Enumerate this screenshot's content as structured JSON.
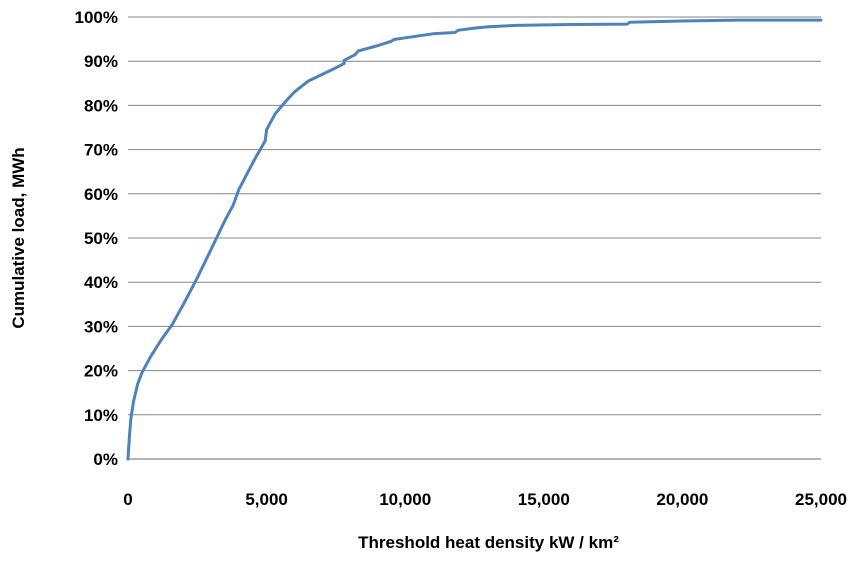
{
  "chart_data": {
    "type": "line",
    "title": "",
    "xlabel": "Threshold heat density kW / km²",
    "ylabel": "Cumulative load, MWh",
    "xlim": [
      0,
      25000
    ],
    "ylim": [
      0,
      100
    ],
    "x_ticks": [
      0,
      5000,
      10000,
      15000,
      20000,
      25000
    ],
    "x_tick_labels": [
      "0",
      "5,000",
      "10,000",
      "15,000",
      "20,000",
      "25,000"
    ],
    "y_ticks": [
      0,
      10,
      20,
      30,
      40,
      50,
      60,
      70,
      80,
      90,
      100
    ],
    "y_tick_labels": [
      "0%",
      "10%",
      "20%",
      "30%",
      "40%",
      "50%",
      "60%",
      "70%",
      "80%",
      "90%",
      "100%"
    ],
    "grid": "horizontal",
    "legend": "none",
    "series": [
      {
        "color": "#4F81BD",
        "x": [
          0,
          50,
          100,
          200,
          350,
          500,
          800,
          1200,
          1600,
          2000,
          2500,
          3000,
          3500,
          3800,
          4000,
          4500,
          4950,
          5000,
          5300,
          5700,
          6000,
          6500,
          7000,
          7500,
          7800,
          7800,
          8200,
          8300,
          9000,
          9500,
          9600,
          10000,
          11000,
          11800,
          11900,
          12500,
          13000,
          14000,
          16000,
          18000,
          18100,
          20000,
          22000,
          25000
        ],
        "y": [
          0,
          5,
          9,
          13,
          17,
          19.5,
          23,
          27,
          30.5,
          35,
          41,
          47.5,
          54,
          57.5,
          61,
          67,
          72,
          74.5,
          78,
          81,
          83,
          85.5,
          87,
          88.5,
          89.5,
          90.2,
          91.5,
          92.3,
          93.5,
          94.5,
          94.9,
          95.3,
          96.2,
          96.5,
          97,
          97.5,
          97.8,
          98.1,
          98.3,
          98.4,
          98.8,
          99.1,
          99.3,
          99.3
        ]
      }
    ]
  }
}
